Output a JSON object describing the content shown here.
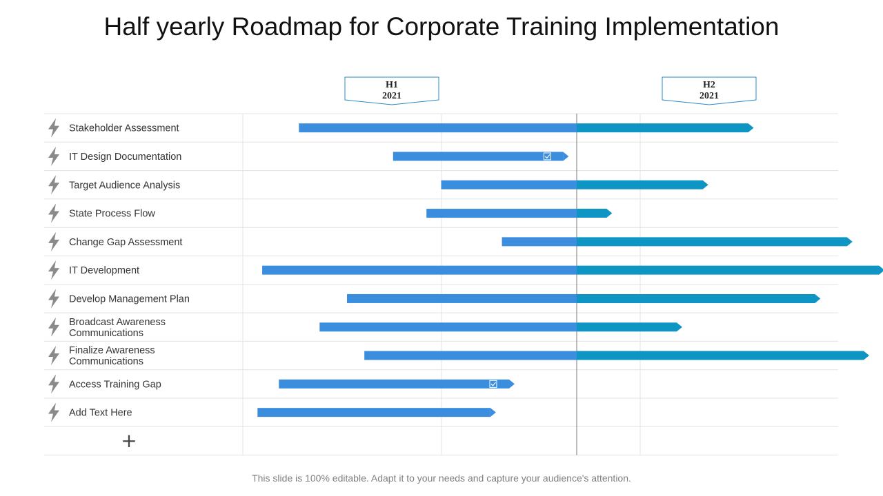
{
  "slide": {
    "title": "Half yearly Roadmap for Corporate Training Implementation",
    "footer": "This slide is 100% editable. Adapt it to your needs and capture your audience's attention."
  },
  "colors": {
    "h1_bar": "#3b8ede",
    "h2_bar": "#0e95c4",
    "grid": "#e3e3e3",
    "divider": "#7a7a7a",
    "icon": "#8a8a8a"
  },
  "chart_data": {
    "type": "gantt",
    "title": "Half yearly Roadmap for Corporate Training Implementation",
    "periods": [
      {
        "label": "H1",
        "year": "2021"
      },
      {
        "label": "H2",
        "year": "2021"
      }
    ],
    "axis_units": "fraction of year (0 = start of H1, 1 = end of H2)",
    "divider_at": 0.5,
    "tasks": [
      {
        "label": [
          "Stakeholder Assessment"
        ],
        "start": 0.084,
        "end": 0.765,
        "checkbox": false
      },
      {
        "label": [
          "IT Design Documentation"
        ],
        "start": 0.225,
        "end": 0.488,
        "checkbox": true
      },
      {
        "label": [
          "Target Audience Analysis"
        ],
        "start": 0.297,
        "end": 0.697,
        "checkbox": false
      },
      {
        "label": [
          "State Process Flow"
        ],
        "start": 0.275,
        "end": 0.553,
        "checkbox": false
      },
      {
        "label": [
          "Change Gap Assessment"
        ],
        "start": 0.388,
        "end": 0.913,
        "checkbox": false
      },
      {
        "label": [
          "IT Development"
        ],
        "start": 0.029,
        "end": 0.961,
        "checkbox": false
      },
      {
        "label": [
          "Develop Management Plan"
        ],
        "start": 0.156,
        "end": 0.865,
        "checkbox": false
      },
      {
        "label": [
          "Broadcast Awareness",
          "Communications"
        ],
        "start": 0.115,
        "end": 0.658,
        "checkbox": false
      },
      {
        "label": [
          "Finalize Awareness",
          "Communications"
        ],
        "start": 0.182,
        "end": 0.938,
        "checkbox": false
      },
      {
        "label": [
          "Access Training Gap"
        ],
        "start": 0.054,
        "end": 0.407,
        "checkbox": true
      },
      {
        "label": [
          "Add Text Here"
        ],
        "start": 0.022,
        "end": 0.379,
        "checkbox": false
      }
    ],
    "add_row_symbol": "+"
  }
}
